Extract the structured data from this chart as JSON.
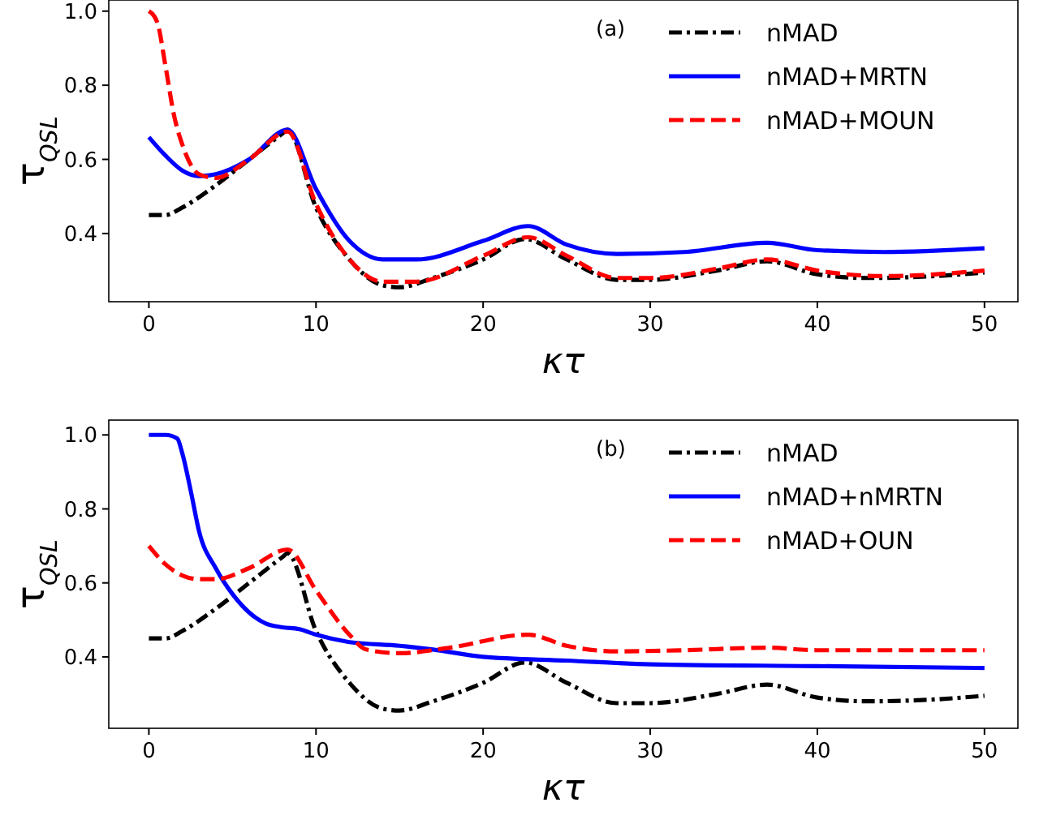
{
  "chart_data": [
    {
      "type": "line",
      "xlabel": "κτ",
      "ylabel": "τ$_{QSL}$",
      "annotations": [
        "(a)"
      ],
      "legend": "top right",
      "xlim": [
        -2.4,
        52
      ],
      "ylim": [
        0.216,
        1.03
      ],
      "xticks": [
        0,
        10,
        20,
        30,
        40,
        50
      ],
      "yticks": [
        0.4,
        0.6,
        0.8,
        {
          "value": 1,
          "label": "1.0"
        }
      ],
      "series": [
        {
          "name": "nMAD",
          "color": "#000000",
          "line_style": "dashdot",
          "x": [
            0,
            1,
            2,
            4,
            6,
            8,
            8.3,
            10,
            12,
            14,
            15,
            17,
            20,
            22.5,
            25,
            28,
            30,
            34,
            37,
            40,
            43,
            47,
            50
          ],
          "values": [
            0.45,
            0.45,
            0.47,
            0.53,
            0.6,
            0.67,
            0.68,
            0.47,
            0.33,
            0.26,
            0.255,
            0.28,
            0.33,
            0.385,
            0.33,
            0.275,
            0.275,
            0.3,
            0.325,
            0.29,
            0.28,
            0.285,
            0.295
          ]
        },
        {
          "name": "nMAD+MRTN",
          "color": "#0000ff",
          "line_style": "solid",
          "x": [
            0,
            1,
            2,
            3,
            4,
            6,
            8.3,
            10,
            12,
            14,
            16,
            20,
            22.7,
            25,
            28,
            32,
            37,
            40,
            44,
            50
          ],
          "values": [
            0.66,
            0.61,
            0.57,
            0.555,
            0.56,
            0.6,
            0.68,
            0.52,
            0.38,
            0.33,
            0.33,
            0.38,
            0.42,
            0.37,
            0.345,
            0.35,
            0.375,
            0.355,
            0.35,
            0.36
          ]
        },
        {
          "name": "nMAD+MOUN",
          "color": "#ff0000",
          "line_style": "dashed",
          "x": [
            0,
            0.5,
            1,
            1.5,
            2,
            3,
            4,
            6,
            8.3,
            10,
            12,
            14,
            16,
            20,
            22.7,
            25,
            28,
            30,
            34,
            37,
            40,
            44,
            50
          ],
          "values": [
            1.0,
            0.97,
            0.85,
            0.72,
            0.64,
            0.56,
            0.55,
            0.6,
            0.675,
            0.48,
            0.33,
            0.27,
            0.27,
            0.34,
            0.39,
            0.34,
            0.28,
            0.28,
            0.305,
            0.33,
            0.3,
            0.285,
            0.3
          ]
        }
      ]
    },
    {
      "type": "line",
      "xlabel": "κτ",
      "ylabel": "τ$_{QSL}$",
      "annotations": [
        "(b)"
      ],
      "legend": "top right",
      "xlim": [
        -2.4,
        52
      ],
      "ylim": [
        0.207,
        1.04
      ],
      "xticks": [
        0,
        10,
        20,
        30,
        40,
        50
      ],
      "yticks": [
        0.4,
        0.6,
        0.8,
        {
          "value": 1,
          "label": "1.0"
        }
      ],
      "series": [
        {
          "name": "nMAD",
          "color": "#000000",
          "line_style": "dashdot",
          "x": [
            0,
            1,
            2,
            4,
            6,
            8,
            8.3,
            10,
            12,
            14,
            15,
            17,
            20,
            22.5,
            25,
            28,
            30,
            34,
            37,
            40,
            43,
            47,
            50
          ],
          "values": [
            0.45,
            0.45,
            0.47,
            0.53,
            0.6,
            0.67,
            0.68,
            0.47,
            0.33,
            0.26,
            0.255,
            0.28,
            0.33,
            0.385,
            0.33,
            0.275,
            0.275,
            0.3,
            0.325,
            0.29,
            0.28,
            0.285,
            0.295
          ]
        },
        {
          "name": "nMAD+nMRTN",
          "color": "#0000ff",
          "line_style": "solid",
          "x": [
            0,
            1,
            1.7,
            2,
            2.5,
            3,
            4,
            5,
            6,
            7,
            8,
            9,
            10,
            12,
            15,
            17,
            20,
            25,
            30,
            40,
            50
          ],
          "values": [
            1.0,
            1.0,
            0.99,
            0.95,
            0.85,
            0.74,
            0.64,
            0.57,
            0.52,
            0.49,
            0.48,
            0.475,
            0.46,
            0.44,
            0.43,
            0.42,
            0.4,
            0.39,
            0.38,
            0.375,
            0.37
          ]
        },
        {
          "name": "nMAD+OUN",
          "color": "#ff0000",
          "line_style": "dashed",
          "x": [
            0,
            1,
            2,
            3,
            4,
            6,
            8.3,
            10,
            12,
            13,
            15,
            18,
            22.7,
            25,
            28,
            32,
            37,
            40,
            50
          ],
          "values": [
            0.7,
            0.65,
            0.62,
            0.61,
            0.61,
            0.64,
            0.69,
            0.58,
            0.46,
            0.42,
            0.41,
            0.425,
            0.46,
            0.43,
            0.415,
            0.418,
            0.425,
            0.418,
            0.418
          ]
        }
      ]
    }
  ]
}
